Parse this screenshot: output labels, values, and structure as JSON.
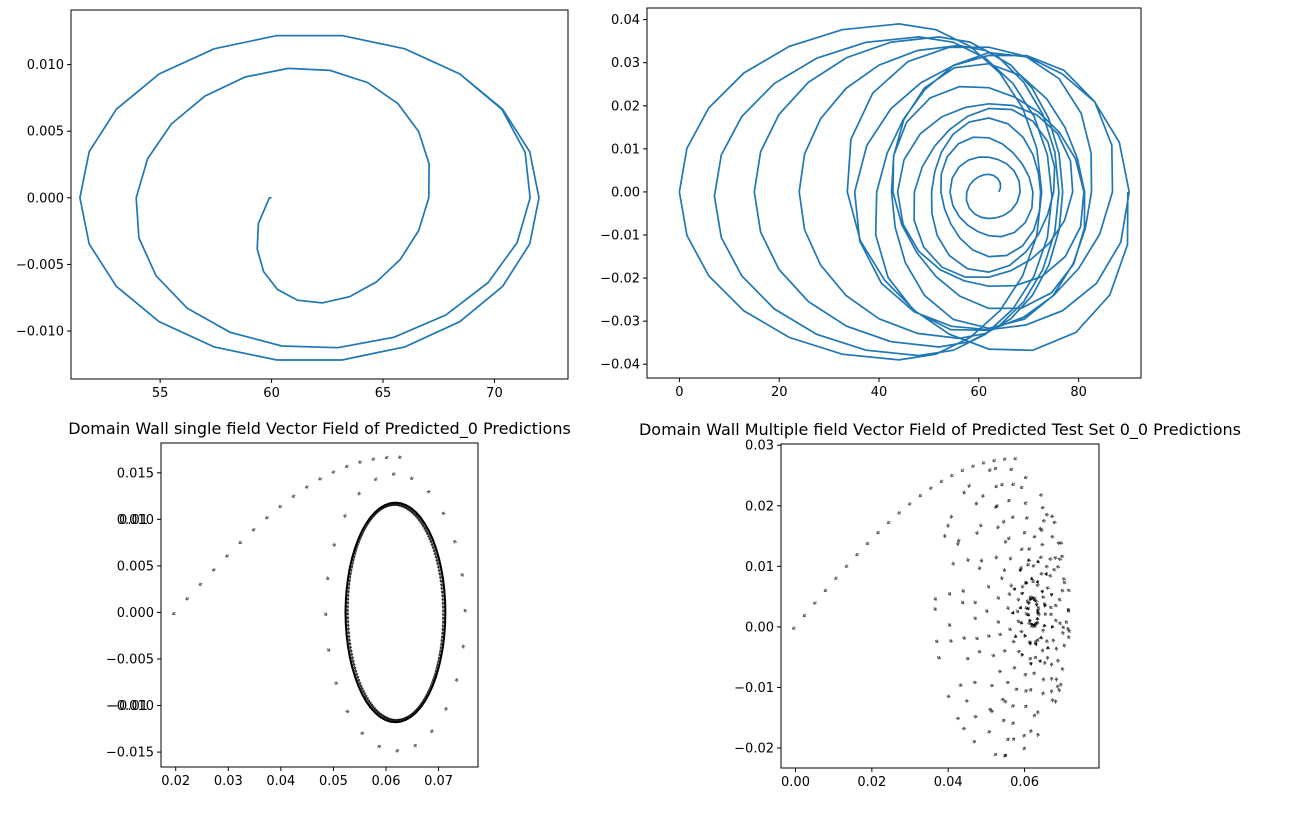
{
  "chart_data": [
    {
      "type": "line",
      "title": "",
      "xlabel": "",
      "ylabel": "",
      "xlim": [
        51,
        73.3
      ],
      "ylim": [
        -0.0136,
        0.0141
      ],
      "xticks": [
        55,
        60,
        65,
        70
      ],
      "xtick_labels": [
        "55",
        "60",
        "65",
        "70"
      ],
      "yticks": [
        -0.01,
        -0.005,
        0.0,
        0.005,
        0.01
      ],
      "ytick_labels": [
        "−0.010",
        "−0.005",
        "0.000",
        "0.005",
        "0.010"
      ],
      "grid": false,
      "color": "#1f77b4",
      "series": [
        {
          "desc": "outward spiral settling on a limit cycle",
          "center_x": 61.7,
          "center_y": 0.0,
          "amp_x_start": 1.8,
          "amp_y_start": 0.0064,
          "amp_x_end": 10.3,
          "amp_y_end": 0.0123,
          "turns": 3.6,
          "points_per_turn": 22,
          "start": [
            60.0,
            0.0
          ]
        }
      ]
    },
    {
      "type": "line",
      "title": "",
      "xlabel": "",
      "ylabel": "",
      "xlim": [
        -6.5,
        92.5
      ],
      "ylim": [
        -0.0432,
        0.0427
      ],
      "xticks": [
        0,
        20,
        40,
        60,
        80
      ],
      "xtick_labels": [
        "0",
        "20",
        "40",
        "60",
        "80"
      ],
      "yticks": [
        -0.04,
        -0.03,
        -0.02,
        -0.01,
        0.0,
        0.01,
        0.02,
        0.03,
        0.04
      ],
      "ytick_labels": [
        "−0.04",
        "−0.03",
        "−0.02",
        "−0.01",
        "0.00",
        "0.01",
        "0.02",
        "0.03",
        "0.04"
      ],
      "grid": false,
      "color": "#1f77b4",
      "series": [
        {
          "desc": "many nested spiral orbits around (62, 0)",
          "center_x": 62.0,
          "center_y": 0.0,
          "amp_x_start": 2.0,
          "amp_y_start": 0.0025,
          "amp_x_end": 28.0,
          "amp_y_end": 0.038,
          "turns": 11,
          "points_per_turn": 20
        },
        {
          "desc": "large excursion loops to the left",
          "loops": [
            {
              "cx": 44.0,
              "cy": 0.0,
              "ax": 44.0,
              "ay": 0.039
            },
            {
              "cx": 48.0,
              "cy": -0.001,
              "ax": 41.0,
              "ay": 0.037
            },
            {
              "cx": 52.0,
              "cy": 0.0,
              "ax": 37.0,
              "ay": 0.036
            },
            {
              "cx": 56.0,
              "cy": 0.0,
              "ax": 32.0,
              "ay": 0.034
            }
          ]
        }
      ]
    },
    {
      "type": "quiver",
      "title": "Domain Wall single field  Vector Field of Predicted_0  Predictions",
      "xlabel": "",
      "ylabel": "",
      "xlim": [
        0.0172,
        0.0775
      ],
      "ylim": [
        -0.0166,
        0.0182
      ],
      "xticks": [
        0.02,
        0.03,
        0.04,
        0.05,
        0.06,
        0.07
      ],
      "xtick_labels": [
        "0.02",
        "0.03",
        "0.04",
        "0.05",
        "0.06",
        "0.07"
      ],
      "yticks": [
        -0.015,
        -0.01,
        -0.005,
        0.0,
        0.005,
        0.01,
        0.015
      ],
      "ytick_labels": [
        "−0.015",
        "−0.010",
        "−0.005",
        "0.000",
        "0.005",
        "0.010",
        "0.015"
      ],
      "ytick_overlay_labels": [
        "−0.01",
        "0.01"
      ],
      "grid": false,
      "color": "#000000",
      "fields": [
        {
          "desc": "dense ellipse of arrows",
          "cx": 0.0618,
          "cy": 0.0,
          "ax": 0.0095,
          "ay": 0.0118,
          "count": 180
        },
        {
          "desc": "sparse outer ring",
          "cx": 0.0618,
          "cy": 0.0,
          "ax": 0.0135,
          "ay": 0.015,
          "count": 24
        },
        {
          "desc": "arc of arrows from origin",
          "x_start": 0.02,
          "x_end": 0.063,
          "count": 18
        }
      ]
    },
    {
      "type": "quiver",
      "title": "Domain Wall Multiple field  Vector Field of Predicted Test Set 0_0  Predictions",
      "xlabel": "",
      "ylabel": "",
      "xlim": [
        -0.0038,
        0.0795
      ],
      "ylim": [
        -0.0233,
        0.0302
      ],
      "xticks": [
        0.0,
        0.02,
        0.04,
        0.06
      ],
      "xtick_labels": [
        "0.00",
        "0.02",
        "0.04",
        "0.06"
      ],
      "yticks": [
        -0.02,
        -0.01,
        0.0,
        0.01,
        0.02,
        0.03
      ],
      "ytick_labels": [
        "−0.02",
        "−0.01",
        "0.00",
        "0.01",
        "0.02",
        "0.03"
      ],
      "grid": false,
      "color": "#000000",
      "fields": [
        {
          "desc": "nested spiral arrows",
          "cx": 0.0622,
          "cy": 0.0025,
          "ax_max": 0.018,
          "ay_max": 0.024,
          "rings": 9
        },
        {
          "desc": "arc of arrows from origin",
          "x_start": 0.0,
          "x_end": 0.058,
          "count": 22
        },
        {
          "desc": "dense core",
          "cx": 0.0622,
          "cy": 0.0025,
          "count": 40
        }
      ]
    }
  ]
}
